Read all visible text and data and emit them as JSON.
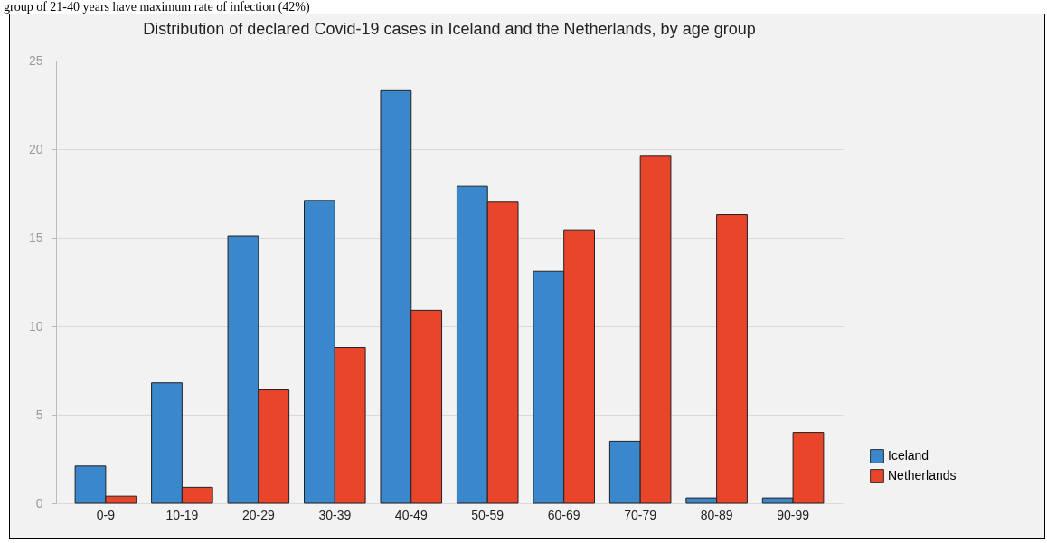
{
  "chart_data": {
    "type": "bar",
    "title": "Distribution of declared Covid-19 cases in Iceland and the Netherlands, by age group",
    "annotations": [
      "group of 21-40 years have maximum rate of infection (42%)"
    ],
    "categories": [
      "0-9",
      "10-19",
      "20-29",
      "30-39",
      "40-49",
      "50-59",
      "60-69",
      "70-79",
      "80-89",
      "90-99"
    ],
    "series": [
      {
        "name": "Iceland",
        "color": "#3a87cc",
        "values": [
          2.1,
          6.8,
          15.1,
          17.1,
          23.3,
          17.9,
          13.1,
          3.5,
          0.3,
          0.3
        ]
      },
      {
        "name": "Netherlands",
        "color": "#e8452a",
        "values": [
          0.4,
          0.9,
          6.4,
          8.8,
          10.9,
          17.0,
          15.4,
          19.6,
          16.3,
          4.0
        ]
      }
    ],
    "ylim": [
      0,
      25
    ],
    "yticks": [
      0,
      5,
      10,
      15,
      20,
      25
    ],
    "grid": "y",
    "legend": "bottom right"
  }
}
